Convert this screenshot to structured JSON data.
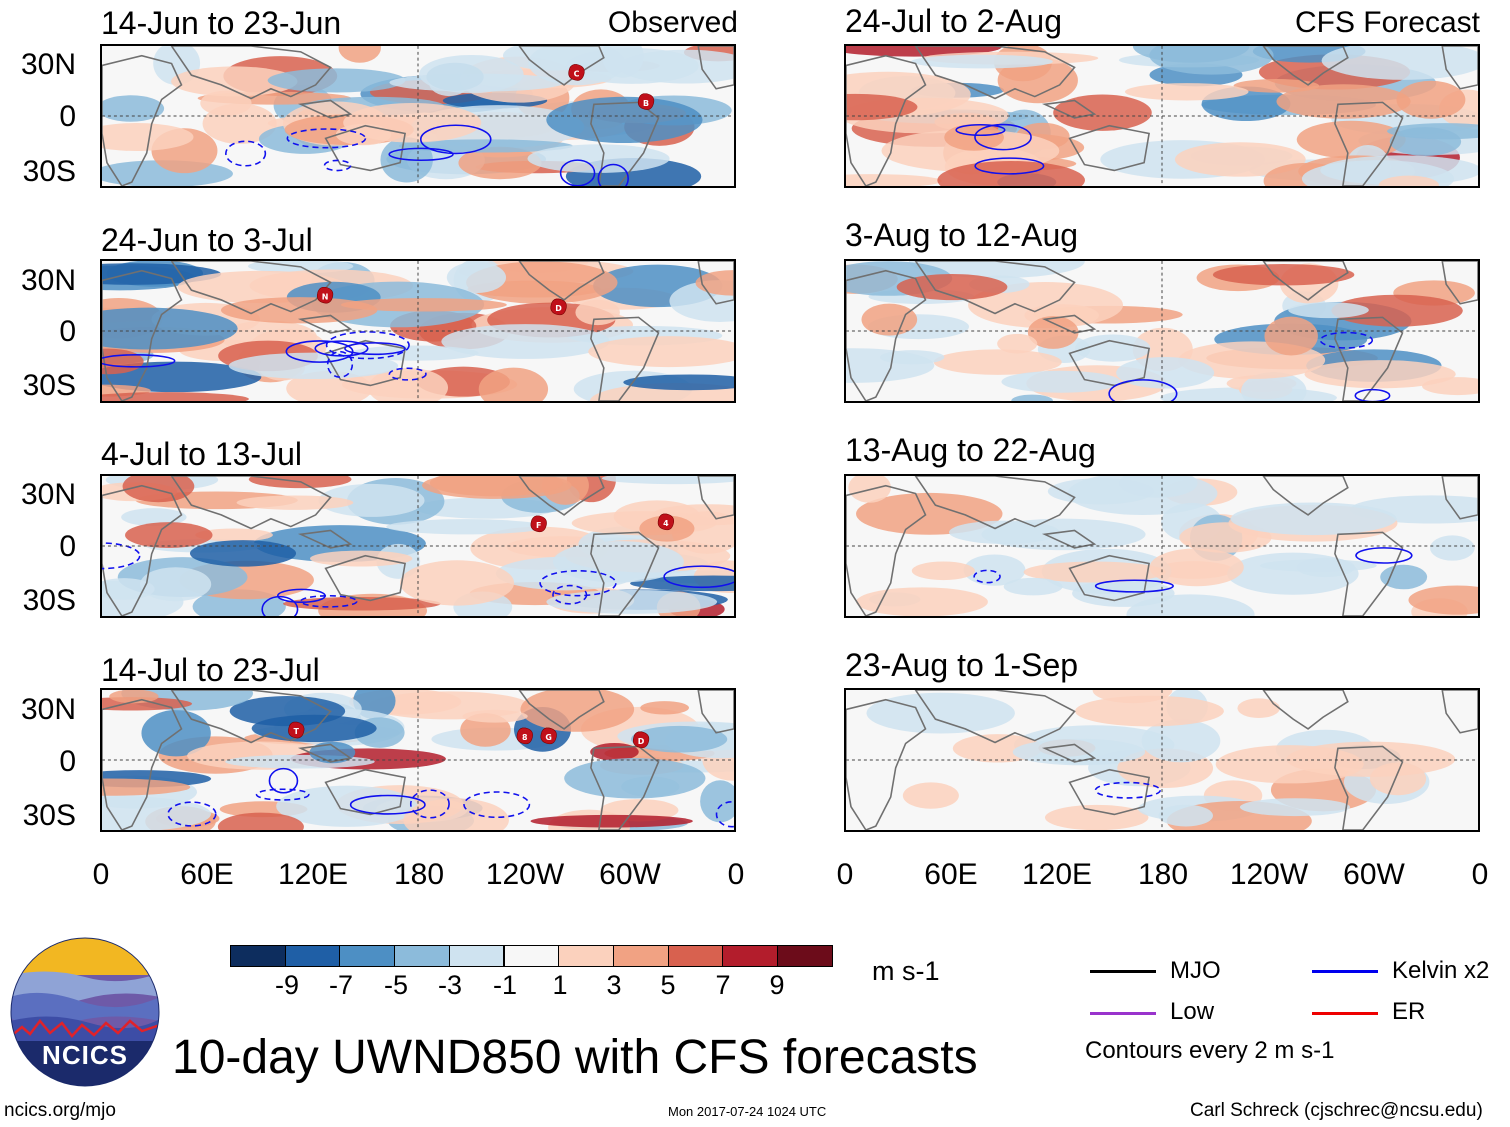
{
  "observed_label": "Observed",
  "forecast_label": "CFS Forecast",
  "panels_left": [
    {
      "title": "14-Jun to 23-Jun",
      "markers": [
        "C",
        "B"
      ]
    },
    {
      "title": "24-Jun to 3-Jul",
      "markers": [
        "N",
        "D"
      ]
    },
    {
      "title": "4-Jul to 13-Jul",
      "markers": [
        "F",
        "4"
      ]
    },
    {
      "title": "14-Jul to 23-Jul",
      "markers": [
        "T",
        "8",
        "G",
        "D"
      ]
    }
  ],
  "panels_right": [
    {
      "title": "24-Jul to 2-Aug"
    },
    {
      "title": "3-Aug to 12-Aug"
    },
    {
      "title": "13-Aug to 22-Aug"
    },
    {
      "title": "23-Aug to 1-Sep"
    }
  ],
  "lat_labels": [
    "30N",
    "0",
    "30S"
  ],
  "lon_labels": [
    "0",
    "60E",
    "120E",
    "180",
    "120W",
    "60W",
    "0"
  ],
  "colorbar": {
    "labels": [
      "-9",
      "-7",
      "-5",
      "-3",
      "-1",
      "1",
      "3",
      "5",
      "7",
      "9"
    ],
    "colors": [
      "#0d2d5e",
      "#1f5fa6",
      "#4d8fc4",
      "#8cbbdb",
      "#cfe3f0",
      "#f7f7f7",
      "#fbd1bd",
      "#f1a283",
      "#d8614f",
      "#b31d2c",
      "#6c0c1a"
    ],
    "units": "m s-1"
  },
  "legend": {
    "items": [
      {
        "label": "MJO",
        "color": "#000000"
      },
      {
        "label": "Kelvin x2",
        "color": "#0000ee"
      },
      {
        "label": "Low",
        "color": "#9933cc"
      },
      {
        "label": "ER",
        "color": "#ee0000"
      }
    ],
    "note": "Contours every 2 m s-1"
  },
  "main_title": "10-day UWND850 with CFS forecasts",
  "logo_text": "NCICS",
  "footer": {
    "left": "ncics.org/mjo",
    "center": "Mon 2017-07-24 1024 UTC",
    "right": "Carl Schreck (cjschrec@ncsu.edu)"
  }
}
